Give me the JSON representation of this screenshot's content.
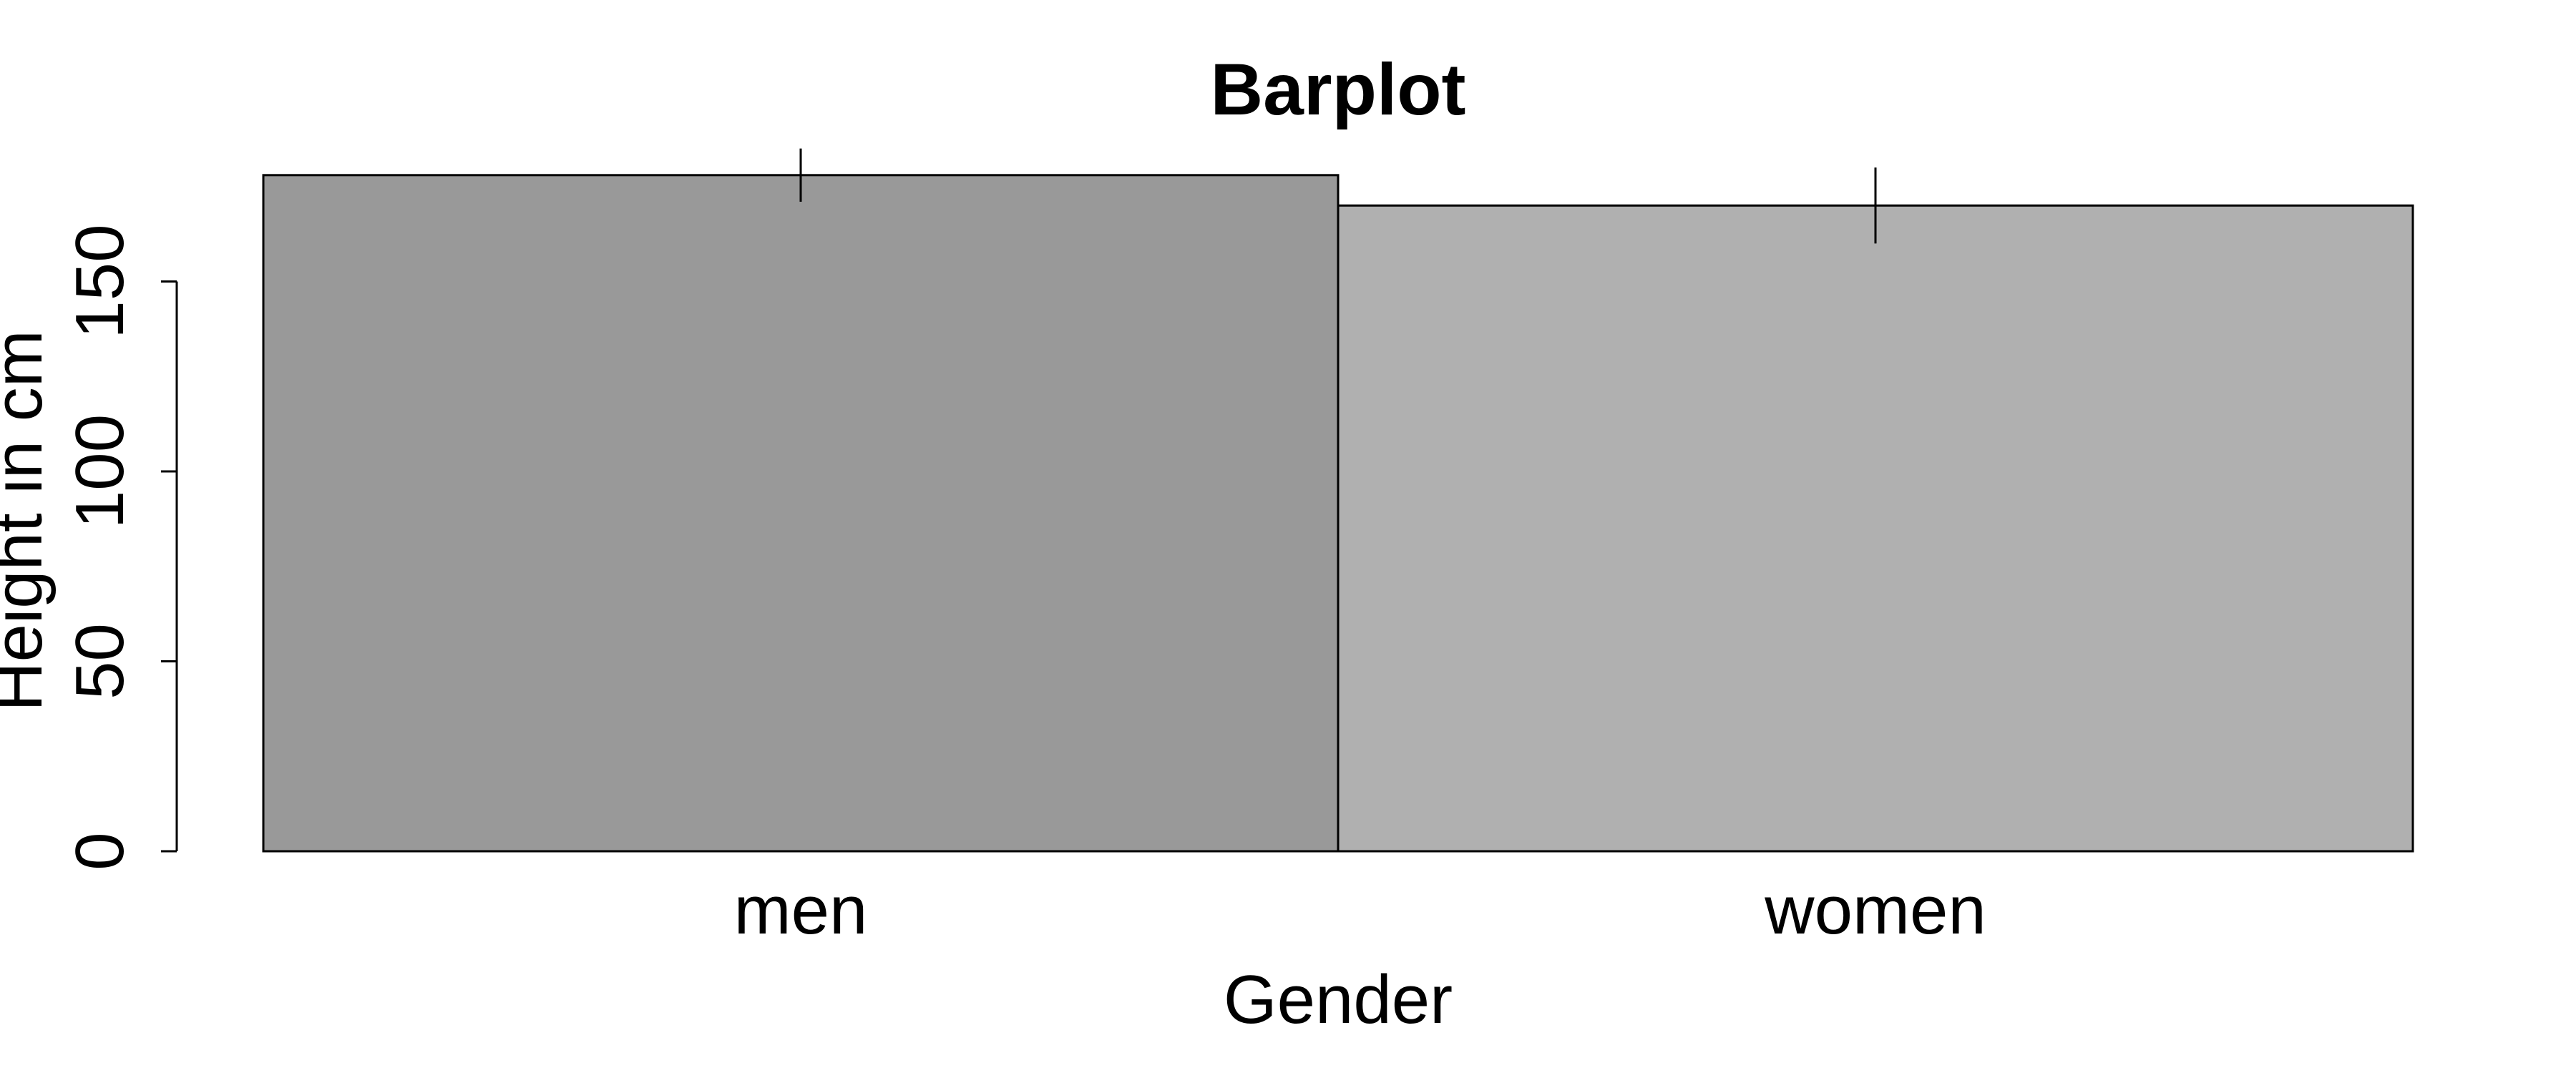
{
  "chart_data": {
    "type": "bar",
    "title": "Barplot",
    "xlabel": "Gender",
    "ylabel": "Height in cm",
    "categories": [
      "men",
      "women"
    ],
    "values": [
      178,
      170
    ],
    "error_upper": [
      185,
      180
    ],
    "error_lower": [
      171,
      160
    ],
    "bar_colors": [
      "#999999",
      "#b0b0b0"
    ],
    "ylim": [
      0,
      181
    ],
    "yticks": [
      0,
      50,
      100,
      150
    ],
    "grid": false,
    "legend": "none"
  }
}
